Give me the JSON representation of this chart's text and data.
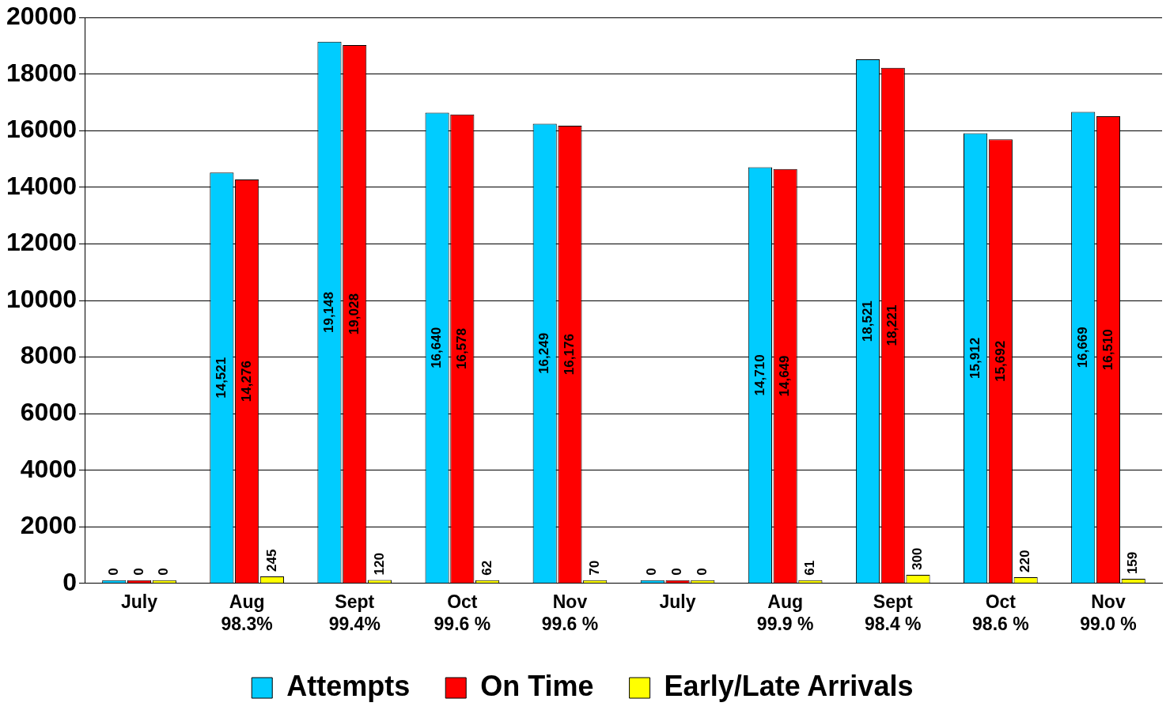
{
  "chart_data": {
    "type": "bar",
    "categories": [
      "July",
      "Aug\n98.3%",
      "Sept\n99.4%",
      "Oct\n99.6 %",
      "Nov\n99.6 %",
      "July",
      "Aug\n99.9 %",
      "Sept\n98.4 %",
      "Oct\n98.6 %",
      "Nov\n99.0 %"
    ],
    "series": [
      {
        "name": "Attempts",
        "color": "#00ccff",
        "values": [
          0,
          14521,
          19148,
          16640,
          16249,
          0,
          14710,
          18521,
          15912,
          16669
        ],
        "value_labels": [
          "0",
          "14,521",
          "19,148",
          "16,640",
          "16,249",
          "0",
          "14,710",
          "18,521",
          "15,912",
          "16,669"
        ]
      },
      {
        "name": "On Time",
        "color": "#ff0000",
        "values": [
          0,
          14276,
          19028,
          16578,
          16176,
          0,
          14649,
          18221,
          15692,
          16510
        ],
        "value_labels": [
          "0",
          "14,276",
          "19,028",
          "16,578",
          "16,176",
          "0",
          "14,649",
          "18,221",
          "15,692",
          "16,510"
        ]
      },
      {
        "name": "Early/Late Arrivals",
        "color": "#ffff00",
        "values": [
          0,
          245,
          120,
          62,
          70,
          0,
          61,
          300,
          220,
          159
        ],
        "value_labels": [
          "0",
          "245",
          "120",
          "62",
          "70",
          "0",
          "61",
          "300",
          "220",
          "159"
        ]
      }
    ],
    "ylim": [
      0,
      20000
    ],
    "yticks": [
      0,
      2000,
      4000,
      6000,
      8000,
      10000,
      12000,
      14000,
      16000,
      18000,
      20000
    ],
    "grid": "y",
    "legend": "bottom"
  }
}
